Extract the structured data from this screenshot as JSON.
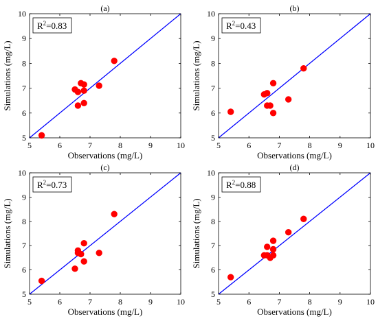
{
  "chart_data": [
    {
      "type": "scatter",
      "title": "(a)",
      "r2_label": "R",
      "r2_sup": "2",
      "r2_value": "=0.83",
      "xlabel": "Observations (mg/L)",
      "ylabel": "Simulations (mg/L)",
      "xlim": [
        5,
        10
      ],
      "ylim": [
        5,
        10
      ],
      "xticks": [
        "5",
        "6",
        "7",
        "8",
        "9",
        "10"
      ],
      "yticks": [
        "5",
        "6",
        "7",
        "8",
        "9",
        "10"
      ],
      "reference_line": "1:1",
      "marker_color": "#ff0000",
      "line_color": "#0000ff",
      "grid": false,
      "points": [
        {
          "x": 5.4,
          "y": 5.1
        },
        {
          "x": 6.5,
          "y": 6.95
        },
        {
          "x": 6.6,
          "y": 6.85
        },
        {
          "x": 6.6,
          "y": 6.3
        },
        {
          "x": 6.7,
          "y": 7.2
        },
        {
          "x": 6.8,
          "y": 7.15
        },
        {
          "x": 6.8,
          "y": 6.9
        },
        {
          "x": 6.8,
          "y": 6.4
        },
        {
          "x": 7.3,
          "y": 7.1
        },
        {
          "x": 7.8,
          "y": 8.1
        }
      ]
    },
    {
      "type": "scatter",
      "title": "(b)",
      "r2_label": "R",
      "r2_sup": "2",
      "r2_value": "=0.43",
      "xlabel": "Observations (mg/L)",
      "ylabel": "Simulations (mg/L)",
      "xlim": [
        5,
        10
      ],
      "ylim": [
        5,
        10
      ],
      "xticks": [
        "5",
        "6",
        "7",
        "8",
        "9",
        "10"
      ],
      "yticks": [
        "5",
        "6",
        "7",
        "8",
        "9",
        "10"
      ],
      "reference_line": "1:1",
      "marker_color": "#ff0000",
      "line_color": "#0000ff",
      "grid": false,
      "points": [
        {
          "x": 5.4,
          "y": 6.05
        },
        {
          "x": 6.5,
          "y": 6.75
        },
        {
          "x": 6.6,
          "y": 6.8
        },
        {
          "x": 6.6,
          "y": 6.3
        },
        {
          "x": 6.7,
          "y": 6.3
        },
        {
          "x": 6.8,
          "y": 7.2
        },
        {
          "x": 6.8,
          "y": 6.0
        },
        {
          "x": 7.3,
          "y": 6.55
        },
        {
          "x": 7.8,
          "y": 7.8
        }
      ]
    },
    {
      "type": "scatter",
      "title": "(c)",
      "r2_label": "R",
      "r2_sup": "2",
      "r2_value": "=0.73",
      "xlabel": "Observations (mg/L)",
      "ylabel": "Simulations (mg/L)",
      "xlim": [
        5,
        10
      ],
      "ylim": [
        5,
        10
      ],
      "xticks": [
        "5",
        "6",
        "7",
        "8",
        "9",
        "10"
      ],
      "yticks": [
        "5",
        "6",
        "7",
        "8",
        "9",
        "10"
      ],
      "reference_line": "1:1",
      "marker_color": "#ff0000",
      "line_color": "#0000ff",
      "grid": false,
      "points": [
        {
          "x": 5.4,
          "y": 5.55
        },
        {
          "x": 6.5,
          "y": 6.05
        },
        {
          "x": 6.6,
          "y": 6.8
        },
        {
          "x": 6.6,
          "y": 6.7
        },
        {
          "x": 6.7,
          "y": 6.65
        },
        {
          "x": 6.8,
          "y": 7.1
        },
        {
          "x": 6.8,
          "y": 6.35
        },
        {
          "x": 7.3,
          "y": 6.7
        },
        {
          "x": 7.8,
          "y": 8.3
        }
      ]
    },
    {
      "type": "scatter",
      "title": "(d)",
      "r2_label": "R",
      "r2_sup": "2",
      "r2_value": "=0.88",
      "xlabel": "Observations (mg/L)",
      "ylabel": "Simulations (mg/L)",
      "xlim": [
        5,
        10
      ],
      "ylim": [
        5,
        10
      ],
      "xticks": [
        "5",
        "6",
        "7",
        "8",
        "9",
        "10"
      ],
      "yticks": [
        "5",
        "6",
        "7",
        "8",
        "9",
        "10"
      ],
      "reference_line": "1:1",
      "marker_color": "#ff0000",
      "line_color": "#0000ff",
      "grid": false,
      "points": [
        {
          "x": 5.4,
          "y": 5.7
        },
        {
          "x": 6.5,
          "y": 6.6
        },
        {
          "x": 6.6,
          "y": 6.95
        },
        {
          "x": 6.6,
          "y": 6.6
        },
        {
          "x": 6.7,
          "y": 6.5
        },
        {
          "x": 6.8,
          "y": 7.2
        },
        {
          "x": 6.8,
          "y": 6.85
        },
        {
          "x": 6.8,
          "y": 6.6
        },
        {
          "x": 7.3,
          "y": 7.55
        },
        {
          "x": 7.8,
          "y": 8.1
        }
      ]
    }
  ]
}
